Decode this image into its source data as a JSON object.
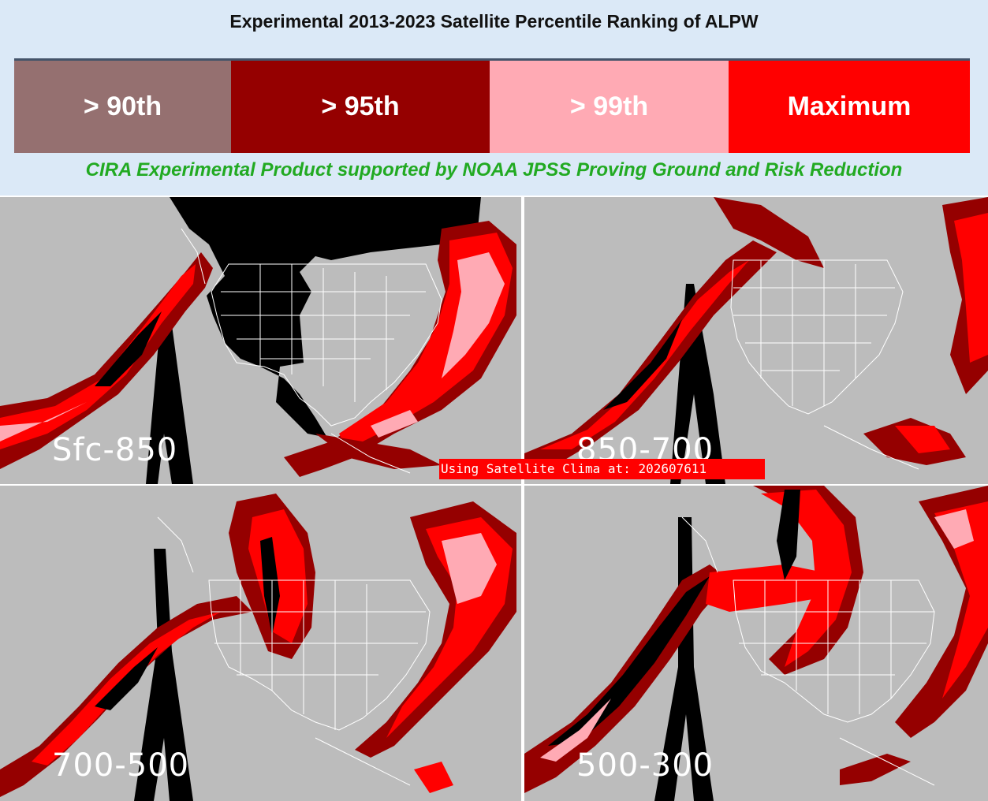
{
  "header": {
    "title": "Experimental 2013-2023 Satellite Percentile Ranking of ALPW",
    "credit": "CIRA Experimental Product supported by NOAA JPSS Proving Ground and Risk Reduction",
    "credit_color": "#22aa22"
  },
  "legend": [
    {
      "label": "> 90th",
      "color": "#957070"
    },
    {
      "label": "> 95th",
      "color": "#950000"
    },
    {
      "label": "> 99th",
      "color": "#ffaab4"
    },
    {
      "label": "Maximum",
      "color": "#ff0000"
    }
  ],
  "panels": [
    {
      "label": "Sfc-850"
    },
    {
      "label": "850-700"
    },
    {
      "label": "700-500"
    },
    {
      "label": "500-300"
    }
  ],
  "clima_banner": "Using Satellite Clima at: 202607611",
  "colors": {
    "ocean_gray": "#bcbcbc",
    "no_data": "#000000",
    "p90": "#957070",
    "p95": "#950000",
    "p99": "#ffaab4",
    "max": "#ff0000",
    "border_lines": "#ffffff"
  }
}
